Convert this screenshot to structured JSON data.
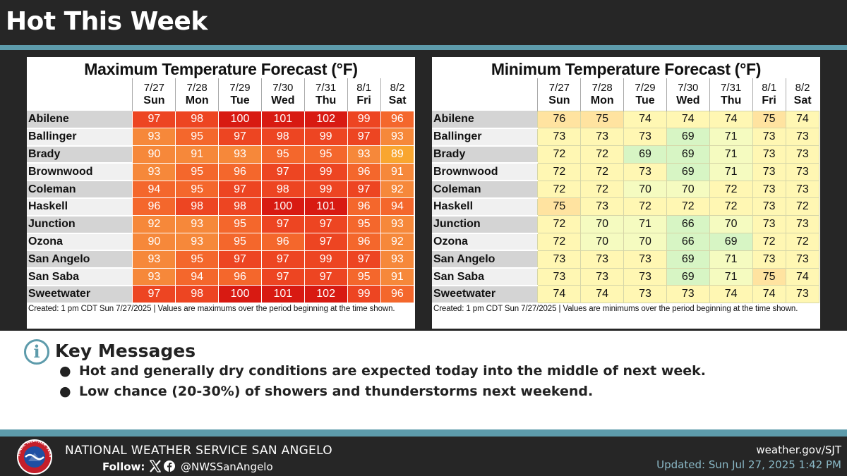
{
  "header": {
    "title": "Hot This Week"
  },
  "days": [
    {
      "date": "7/27",
      "day": "Sun"
    },
    {
      "date": "7/28",
      "day": "Mon"
    },
    {
      "date": "7/29",
      "day": "Tue"
    },
    {
      "date": "7/30",
      "day": "Wed"
    },
    {
      "date": "7/31",
      "day": "Thu"
    },
    {
      "date": "8/1",
      "day": "Fri"
    },
    {
      "date": "8/2",
      "day": "Sat"
    }
  ],
  "max_forecast": {
    "title": "Maximum Temperature Forecast (°F)",
    "footer": "Created: 1 pm CDT Sun 7/27/2025  |  Values are maximums over the period beginning at the time shown.",
    "rows": [
      {
        "city": "Abilene",
        "values": [
          97,
          98,
          100,
          101,
          102,
          99,
          96
        ]
      },
      {
        "city": "Ballinger",
        "values": [
          93,
          95,
          97,
          98,
          99,
          97,
          93
        ]
      },
      {
        "city": "Brady",
        "values": [
          90,
          91,
          93,
          95,
          95,
          93,
          89
        ]
      },
      {
        "city": "Brownwood",
        "values": [
          93,
          95,
          96,
          97,
          99,
          96,
          91
        ]
      },
      {
        "city": "Coleman",
        "values": [
          94,
          95,
          97,
          98,
          99,
          97,
          92
        ]
      },
      {
        "city": "Haskell",
        "values": [
          96,
          98,
          98,
          100,
          101,
          96,
          94
        ]
      },
      {
        "city": "Junction",
        "values": [
          92,
          93,
          95,
          97,
          97,
          95,
          93
        ]
      },
      {
        "city": "Ozona",
        "values": [
          90,
          93,
          95,
          96,
          97,
          96,
          92
        ]
      },
      {
        "city": "San Angelo",
        "values": [
          93,
          95,
          97,
          97,
          99,
          97,
          93
        ]
      },
      {
        "city": "San Saba",
        "values": [
          93,
          94,
          96,
          97,
          97,
          95,
          91
        ]
      },
      {
        "city": "Sweetwater",
        "values": [
          97,
          98,
          100,
          101,
          102,
          99,
          96
        ]
      }
    ]
  },
  "min_forecast": {
    "title": "Minimum Temperature Forecast (°F)",
    "footer": "Created: 1 pm CDT Sun 7/27/2025  |  Values are minimums over the period beginning at the time shown.",
    "rows": [
      {
        "city": "Abilene",
        "values": [
          76,
          75,
          74,
          74,
          74,
          75,
          74
        ]
      },
      {
        "city": "Ballinger",
        "values": [
          73,
          73,
          73,
          69,
          71,
          73,
          73
        ]
      },
      {
        "city": "Brady",
        "values": [
          72,
          72,
          69,
          69,
          71,
          73,
          73
        ]
      },
      {
        "city": "Brownwood",
        "values": [
          72,
          72,
          73,
          69,
          71,
          73,
          73
        ]
      },
      {
        "city": "Coleman",
        "values": [
          72,
          72,
          70,
          70,
          72,
          73,
          73
        ]
      },
      {
        "city": "Haskell",
        "values": [
          75,
          73,
          72,
          72,
          72,
          73,
          72
        ]
      },
      {
        "city": "Junction",
        "values": [
          72,
          70,
          71,
          66,
          70,
          73,
          73
        ]
      },
      {
        "city": "Ozona",
        "values": [
          72,
          70,
          70,
          66,
          69,
          72,
          72
        ]
      },
      {
        "city": "San Angelo",
        "values": [
          73,
          73,
          73,
          69,
          71,
          73,
          73
        ]
      },
      {
        "city": "San Saba",
        "values": [
          73,
          73,
          73,
          69,
          71,
          75,
          74
        ]
      },
      {
        "city": "Sweetwater",
        "values": [
          74,
          74,
          73,
          73,
          74,
          74,
          73
        ]
      }
    ]
  },
  "key_messages": {
    "title": "Key Messages",
    "bullets": [
      "Hot and generally dry conditions are expected today into the middle of next week.",
      "Low chance (20-30%) of showers and thunderstorms next weekend."
    ]
  },
  "footer": {
    "org_name": "NATIONAL WEATHER SERVICE SAN ANGELO",
    "follow_label": "Follow:",
    "handle": "@NWSSanAngelo",
    "website": "weather.gov/SJT",
    "updated": "Updated: Sun Jul 27, 2025 1:42 PM",
    "logo_text": "NATIONAL WEATHER SERVICE"
  },
  "colors": {
    "accent": "#5d9bab",
    "dark": "#262626"
  }
}
